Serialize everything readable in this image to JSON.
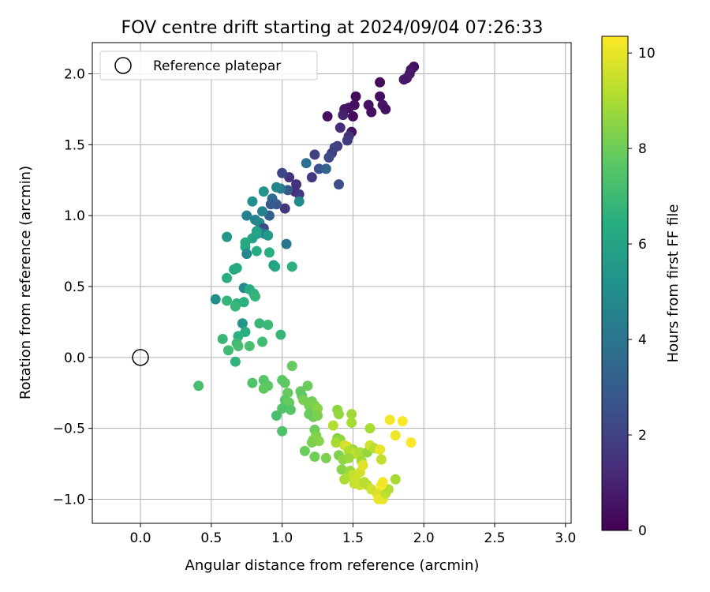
{
  "chart_data": {
    "type": "scatter",
    "title": "FOV centre drift starting at 2024/09/04 07:26:33",
    "xlabel": "Angular distance from reference (arcmin)",
    "ylabel": "Rotation from reference (arcmin)",
    "xlim": [
      -0.34,
      3.04
    ],
    "ylim": [
      -1.17,
      2.22
    ],
    "xticks": [
      "0.0",
      "0.5",
      "1.0",
      "1.5",
      "2.0",
      "2.5",
      "3.0"
    ],
    "yticks": [
      "−1.0",
      "−0.5",
      "0.0",
      "0.5",
      "1.0",
      "1.5",
      "2.0"
    ],
    "grid": true,
    "legend": {
      "placement": "top-left",
      "entries": [
        "Reference platepar"
      ]
    },
    "reference_point": {
      "x": 0.0,
      "y": 0.0
    },
    "colorbar": {
      "label": "Hours from first FF file",
      "range": [
        0,
        10.35
      ],
      "ticks": [
        "0",
        "2",
        "4",
        "6",
        "8",
        "10"
      ],
      "colormap": "viridis"
    },
    "series": [
      {
        "points": [
          {
            "x": 1.93,
            "y": 2.05,
            "h": 0.5
          },
          {
            "x": 1.91,
            "y": 2.03,
            "h": 0.6
          },
          {
            "x": 1.9,
            "y": 2.0,
            "h": 0.7
          },
          {
            "x": 1.88,
            "y": 1.97,
            "h": 0.8
          },
          {
            "x": 1.86,
            "y": 1.96,
            "h": 0.7
          },
          {
            "x": 1.69,
            "y": 1.94,
            "h": 0.3
          },
          {
            "x": 1.69,
            "y": 1.84,
            "h": 0.4
          },
          {
            "x": 1.71,
            "y": 1.78,
            "h": 0.6
          },
          {
            "x": 1.73,
            "y": 1.75,
            "h": 0.5
          },
          {
            "x": 1.61,
            "y": 1.78,
            "h": 0.5
          },
          {
            "x": 1.63,
            "y": 1.73,
            "h": 0.4
          },
          {
            "x": 1.52,
            "y": 1.84,
            "h": 0.3
          },
          {
            "x": 1.51,
            "y": 1.78,
            "h": 0.4
          },
          {
            "x": 1.47,
            "y": 1.76,
            "h": 0.5
          },
          {
            "x": 1.44,
            "y": 1.75,
            "h": 0.6
          },
          {
            "x": 1.5,
            "y": 1.7,
            "h": 0.3
          },
          {
            "x": 1.32,
            "y": 1.7,
            "h": 0.4
          },
          {
            "x": 1.49,
            "y": 1.59,
            "h": 0.6
          },
          {
            "x": 1.43,
            "y": 1.71,
            "h": 1.0
          },
          {
            "x": 1.41,
            "y": 1.62,
            "h": 1.3
          },
          {
            "x": 1.47,
            "y": 1.56,
            "h": 1.5
          },
          {
            "x": 1.46,
            "y": 1.53,
            "h": 1.8
          },
          {
            "x": 1.39,
            "y": 1.49,
            "h": 1.9
          },
          {
            "x": 1.37,
            "y": 1.48,
            "h": 2.2
          },
          {
            "x": 1.35,
            "y": 1.44,
            "h": 2.0
          },
          {
            "x": 1.33,
            "y": 1.41,
            "h": 2.3
          },
          {
            "x": 1.23,
            "y": 1.43,
            "h": 2.0
          },
          {
            "x": 1.21,
            "y": 1.27,
            "h": 1.8
          },
          {
            "x": 1.26,
            "y": 1.33,
            "h": 2.6
          },
          {
            "x": 1.31,
            "y": 1.33,
            "h": 3.4
          },
          {
            "x": 1.17,
            "y": 1.37,
            "h": 3.8
          },
          {
            "x": 1.4,
            "y": 1.22,
            "h": 2.5
          },
          {
            "x": 1.05,
            "y": 1.27,
            "h": 1.6
          },
          {
            "x": 1.0,
            "y": 1.3,
            "h": 2.2
          },
          {
            "x": 1.1,
            "y": 1.22,
            "h": 1.5
          },
          {
            "x": 1.09,
            "y": 1.17,
            "h": 1.3
          },
          {
            "x": 1.12,
            "y": 1.15,
            "h": 1.8
          },
          {
            "x": 1.04,
            "y": 1.18,
            "h": 2.9
          },
          {
            "x": 0.99,
            "y": 1.19,
            "h": 4.3
          },
          {
            "x": 0.96,
            "y": 1.2,
            "h": 4.7
          },
          {
            "x": 1.12,
            "y": 1.1,
            "h": 4.9
          },
          {
            "x": 1.02,
            "y": 1.05,
            "h": 1.6
          },
          {
            "x": 0.96,
            "y": 1.08,
            "h": 2.8
          },
          {
            "x": 0.93,
            "y": 1.12,
            "h": 3.6
          },
          {
            "x": 0.92,
            "y": 1.08,
            "h": 3.0
          },
          {
            "x": 0.91,
            "y": 1.0,
            "h": 3.2
          },
          {
            "x": 0.87,
            "y": 1.17,
            "h": 5.3
          },
          {
            "x": 0.79,
            "y": 1.1,
            "h": 5.1
          },
          {
            "x": 0.86,
            "y": 1.03,
            "h": 4.6
          },
          {
            "x": 0.75,
            "y": 1.0,
            "h": 4.5
          },
          {
            "x": 0.81,
            "y": 0.97,
            "h": 4.5
          },
          {
            "x": 0.84,
            "y": 0.95,
            "h": 4.8
          },
          {
            "x": 0.87,
            "y": 0.91,
            "h": 2.4
          },
          {
            "x": 0.85,
            "y": 0.88,
            "h": 3.6
          },
          {
            "x": 0.88,
            "y": 0.87,
            "h": 4.6
          },
          {
            "x": 0.82,
            "y": 0.87,
            "h": 5.8
          },
          {
            "x": 0.9,
            "y": 0.86,
            "h": 5.6
          },
          {
            "x": 0.79,
            "y": 0.84,
            "h": 5.9
          },
          {
            "x": 0.74,
            "y": 0.81,
            "h": 6.2
          },
          {
            "x": 0.82,
            "y": 0.89,
            "h": 6.0
          },
          {
            "x": 1.03,
            "y": 0.8,
            "h": 4.0
          },
          {
            "x": 0.61,
            "y": 0.85,
            "h": 5.4
          },
          {
            "x": 0.74,
            "y": 0.78,
            "h": 6.3
          },
          {
            "x": 0.75,
            "y": 0.73,
            "h": 4.8
          },
          {
            "x": 0.82,
            "y": 0.75,
            "h": 6.4
          },
          {
            "x": 0.91,
            "y": 0.74,
            "h": 6.5
          },
          {
            "x": 0.94,
            "y": 0.65,
            "h": 5.6
          },
          {
            "x": 0.95,
            "y": 0.64,
            "h": 6.1
          },
          {
            "x": 1.07,
            "y": 0.64,
            "h": 6.6
          },
          {
            "x": 0.68,
            "y": 0.63,
            "h": 6.2
          },
          {
            "x": 0.66,
            "y": 0.62,
            "h": 6.3
          },
          {
            "x": 0.61,
            "y": 0.56,
            "h": 6.5
          },
          {
            "x": 0.73,
            "y": 0.49,
            "h": 4.9
          },
          {
            "x": 0.77,
            "y": 0.48,
            "h": 6.4
          },
          {
            "x": 0.8,
            "y": 0.45,
            "h": 6.6
          },
          {
            "x": 0.81,
            "y": 0.43,
            "h": 6.8
          },
          {
            "x": 0.53,
            "y": 0.41,
            "h": 5.1
          },
          {
            "x": 0.61,
            "y": 0.4,
            "h": 6.8
          },
          {
            "x": 0.68,
            "y": 0.38,
            "h": 6.5
          },
          {
            "x": 0.73,
            "y": 0.39,
            "h": 6.6
          },
          {
            "x": 0.67,
            "y": 0.36,
            "h": 6.9
          },
          {
            "x": 0.72,
            "y": 0.24,
            "h": 5.3
          },
          {
            "x": 0.84,
            "y": 0.24,
            "h": 6.9
          },
          {
            "x": 0.9,
            "y": 0.23,
            "h": 7.0
          },
          {
            "x": 0.74,
            "y": 0.18,
            "h": 6.5
          },
          {
            "x": 0.69,
            "y": 0.15,
            "h": 6.6
          },
          {
            "x": 0.99,
            "y": 0.16,
            "h": 6.9
          },
          {
            "x": 0.58,
            "y": 0.13,
            "h": 6.9
          },
          {
            "x": 0.68,
            "y": 0.1,
            "h": 7.0
          },
          {
            "x": 0.86,
            "y": 0.11,
            "h": 7.1
          },
          {
            "x": 0.62,
            "y": 0.05,
            "h": 7.1
          },
          {
            "x": 0.69,
            "y": 0.08,
            "h": 7.2
          },
          {
            "x": 0.77,
            "y": 0.08,
            "h": 7.3
          },
          {
            "x": 0.67,
            "y": -0.03,
            "h": 6.7
          },
          {
            "x": 1.07,
            "y": -0.06,
            "h": 7.9
          },
          {
            "x": 0.41,
            "y": -0.2,
            "h": 7.3
          },
          {
            "x": 0.79,
            "y": -0.18,
            "h": 7.5
          },
          {
            "x": 0.87,
            "y": -0.16,
            "h": 7.6
          },
          {
            "x": 0.9,
            "y": -0.2,
            "h": 7.7
          },
          {
            "x": 0.87,
            "y": -0.22,
            "h": 7.8
          },
          {
            "x": 1.0,
            "y": -0.16,
            "h": 7.7
          },
          {
            "x": 1.02,
            "y": -0.18,
            "h": 7.8
          },
          {
            "x": 1.04,
            "y": -0.25,
            "h": 7.9
          },
          {
            "x": 1.13,
            "y": -0.24,
            "h": 7.9
          },
          {
            "x": 1.18,
            "y": -0.2,
            "h": 8.0
          },
          {
            "x": 1.14,
            "y": -0.27,
            "h": 7.8
          },
          {
            "x": 1.15,
            "y": -0.3,
            "h": 8.2
          },
          {
            "x": 1.02,
            "y": -0.3,
            "h": 7.8
          },
          {
            "x": 1.05,
            "y": -0.32,
            "h": 7.9
          },
          {
            "x": 1.0,
            "y": -0.36,
            "h": 7.5
          },
          {
            "x": 1.06,
            "y": -0.37,
            "h": 7.6
          },
          {
            "x": 0.96,
            "y": -0.41,
            "h": 7.3
          },
          {
            "x": 1.21,
            "y": -0.31,
            "h": 8.1
          },
          {
            "x": 1.19,
            "y": -0.34,
            "h": 8.2
          },
          {
            "x": 1.23,
            "y": -0.34,
            "h": 8.3
          },
          {
            "x": 1.25,
            "y": -0.36,
            "h": 8.5
          },
          {
            "x": 1.22,
            "y": -0.42,
            "h": 8.1
          },
          {
            "x": 1.19,
            "y": -0.4,
            "h": 8.0
          },
          {
            "x": 1.25,
            "y": -0.41,
            "h": 8.3
          },
          {
            "x": 1.0,
            "y": -0.52,
            "h": 7.4
          },
          {
            "x": 1.23,
            "y": -0.51,
            "h": 8.0
          },
          {
            "x": 1.24,
            "y": -0.55,
            "h": 8.3
          },
          {
            "x": 1.22,
            "y": -0.58,
            "h": 8.5
          },
          {
            "x": 1.26,
            "y": -0.59,
            "h": 8.5
          },
          {
            "x": 1.21,
            "y": -0.6,
            "h": 8.3
          },
          {
            "x": 1.16,
            "y": -0.66,
            "h": 8.0
          },
          {
            "x": 1.23,
            "y": -0.7,
            "h": 8.1
          },
          {
            "x": 1.31,
            "y": -0.71,
            "h": 8.3
          },
          {
            "x": 1.39,
            "y": -0.37,
            "h": 8.6
          },
          {
            "x": 1.4,
            "y": -0.4,
            "h": 8.7
          },
          {
            "x": 1.49,
            "y": -0.4,
            "h": 8.9
          },
          {
            "x": 1.49,
            "y": -0.46,
            "h": 9.0
          },
          {
            "x": 1.36,
            "y": -0.48,
            "h": 9.2
          },
          {
            "x": 1.39,
            "y": -0.57,
            "h": 8.4
          },
          {
            "x": 1.41,
            "y": -0.58,
            "h": 8.6
          },
          {
            "x": 1.38,
            "y": -0.6,
            "h": 9.0
          },
          {
            "x": 1.44,
            "y": -0.62,
            "h": 9.6
          },
          {
            "x": 1.46,
            "y": -0.63,
            "h": 9.8
          },
          {
            "x": 1.5,
            "y": -0.65,
            "h": 8.8
          },
          {
            "x": 1.47,
            "y": -0.66,
            "h": 9.2
          },
          {
            "x": 1.52,
            "y": -0.68,
            "h": 9.4
          },
          {
            "x": 1.55,
            "y": -0.67,
            "h": 9.1
          },
          {
            "x": 1.6,
            "y": -0.67,
            "h": 8.7
          },
          {
            "x": 1.62,
            "y": -0.62,
            "h": 9.6
          },
          {
            "x": 1.65,
            "y": -0.64,
            "h": 9.3
          },
          {
            "x": 1.69,
            "y": -0.65,
            "h": 10.0
          },
          {
            "x": 1.62,
            "y": -0.5,
            "h": 9.0
          },
          {
            "x": 1.4,
            "y": -0.69,
            "h": 8.3
          },
          {
            "x": 1.43,
            "y": -0.72,
            "h": 8.6
          },
          {
            "x": 1.47,
            "y": -0.71,
            "h": 8.8
          },
          {
            "x": 1.56,
            "y": -0.73,
            "h": 8.9
          },
          {
            "x": 1.42,
            "y": -0.79,
            "h": 8.5
          },
          {
            "x": 1.48,
            "y": -0.8,
            "h": 8.8
          },
          {
            "x": 1.47,
            "y": -0.84,
            "h": 9.0
          },
          {
            "x": 1.44,
            "y": -0.86,
            "h": 9.1
          },
          {
            "x": 1.5,
            "y": -0.83,
            "h": 9.4
          },
          {
            "x": 1.52,
            "y": -0.86,
            "h": 9.6
          },
          {
            "x": 1.55,
            "y": -0.81,
            "h": 9.7
          },
          {
            "x": 1.57,
            "y": -0.76,
            "h": 9.9
          },
          {
            "x": 1.51,
            "y": -0.89,
            "h": 9.5
          },
          {
            "x": 1.55,
            "y": -0.9,
            "h": 9.6
          },
          {
            "x": 1.58,
            "y": -0.88,
            "h": 9.2
          },
          {
            "x": 1.6,
            "y": -0.9,
            "h": 9.3
          },
          {
            "x": 1.63,
            "y": -0.93,
            "h": 9.6
          },
          {
            "x": 1.67,
            "y": -0.96,
            "h": 9.8
          },
          {
            "x": 1.68,
            "y": -1.0,
            "h": 10.1
          },
          {
            "x": 1.71,
            "y": -1.0,
            "h": 10.0
          },
          {
            "x": 1.73,
            "y": -0.96,
            "h": 9.4
          },
          {
            "x": 1.75,
            "y": -0.93,
            "h": 9.2
          },
          {
            "x": 1.7,
            "y": -0.9,
            "h": 10.3
          },
          {
            "x": 1.71,
            "y": -0.88,
            "h": 10.2
          },
          {
            "x": 1.8,
            "y": -0.86,
            "h": 9.0
          },
          {
            "x": 1.7,
            "y": -0.72,
            "h": 9.4
          },
          {
            "x": 1.76,
            "y": -0.44,
            "h": 10.2
          },
          {
            "x": 1.85,
            "y": -0.45,
            "h": 10.3
          },
          {
            "x": 1.8,
            "y": -0.55,
            "h": 10.1
          },
          {
            "x": 1.91,
            "y": -0.6,
            "h": 10.3
          }
        ]
      }
    ]
  }
}
